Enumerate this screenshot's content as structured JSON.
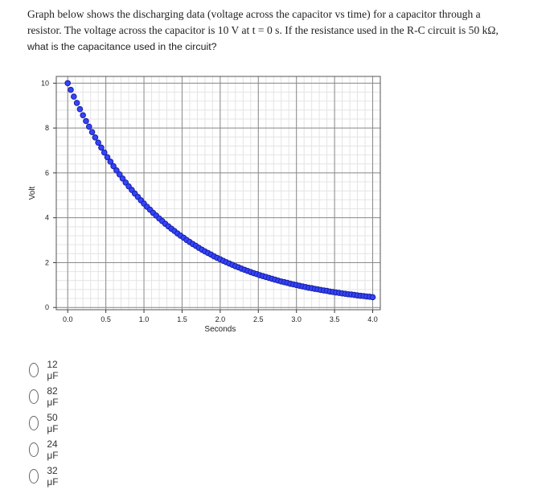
{
  "question": {
    "line1": "Graph below shows the discharging data (voltage across the capacitor vs time) for a capacitor through a",
    "line2": "resistor. The voltage across the capacitor is 10 V at t = 0 s. If the resistance used in the R-C circuit is 50 kΩ,",
    "line3": "what is the capacitance used in the circuit?"
  },
  "chart_data": {
    "type": "scatter",
    "title": "",
    "xlabel": "Seconds",
    "ylabel": "Volt",
    "xlim": [
      -0.15,
      4.1
    ],
    "ylim": [
      -0.1,
      10.3
    ],
    "x_ticks": [
      "0.0",
      "0.5",
      "1.0",
      "1.5",
      "2.0",
      "2.5",
      "3.0",
      "3.5",
      "4.0"
    ],
    "y_ticks": [
      "0",
      "2",
      "4",
      "6",
      "8",
      "10"
    ],
    "grid": true,
    "series": [
      {
        "marker_color": "#3344ff",
        "edge_color": "#1a1f9e",
        "x": [
          0.0,
          0.04,
          0.08,
          0.12,
          0.16,
          0.2,
          0.24,
          0.28,
          0.32,
          0.36,
          0.4,
          0.44,
          0.48,
          0.52,
          0.56,
          0.6,
          0.64,
          0.68,
          0.72,
          0.76,
          0.8,
          0.84,
          0.88,
          0.92,
          0.96,
          1.0,
          1.04,
          1.08,
          1.12,
          1.16,
          1.2,
          1.24,
          1.28,
          1.32,
          1.36,
          1.4,
          1.44,
          1.48,
          1.52,
          1.56,
          1.6,
          1.64,
          1.68,
          1.72,
          1.76,
          1.8,
          1.84,
          1.88,
          1.92,
          1.96,
          2.0,
          2.04,
          2.08,
          2.12,
          2.16,
          2.2,
          2.24,
          2.28,
          2.32,
          2.36,
          2.4,
          2.44,
          2.48,
          2.52,
          2.56,
          2.6,
          2.64,
          2.68,
          2.72,
          2.76,
          2.8,
          2.84,
          2.88,
          2.92,
          2.96,
          3.0,
          3.04,
          3.08,
          3.12,
          3.16,
          3.2,
          3.24,
          3.28,
          3.32,
          3.36,
          3.4,
          3.44,
          3.48,
          3.52,
          3.56,
          3.6,
          3.64,
          3.68,
          3.72,
          3.76,
          3.8,
          3.84,
          3.88,
          3.92,
          3.96,
          4.0
        ],
        "y": [
          10.0,
          9.7,
          9.4,
          9.12,
          8.84,
          8.57,
          8.31,
          8.06,
          7.82,
          7.58,
          7.35,
          7.13,
          6.91,
          6.7,
          6.5,
          6.3,
          6.11,
          5.93,
          5.75,
          5.57,
          5.4,
          5.24,
          5.08,
          4.93,
          4.78,
          4.63,
          4.49,
          4.36,
          4.22,
          4.1,
          3.97,
          3.85,
          3.73,
          3.62,
          3.51,
          3.41,
          3.3,
          3.2,
          3.11,
          3.01,
          2.92,
          2.83,
          2.75,
          2.66,
          2.58,
          2.5,
          2.43,
          2.36,
          2.28,
          2.21,
          2.15,
          2.08,
          2.02,
          1.96,
          1.9,
          1.84,
          1.79,
          1.73,
          1.68,
          1.63,
          1.58,
          1.53,
          1.49,
          1.44,
          1.4,
          1.36,
          1.32,
          1.28,
          1.24,
          1.2,
          1.16,
          1.13,
          1.1,
          1.06,
          1.03,
          1.0,
          0.97,
          0.94,
          0.91,
          0.88,
          0.86,
          0.83,
          0.81,
          0.78,
          0.76,
          0.74,
          0.71,
          0.69,
          0.67,
          0.65,
          0.63,
          0.61,
          0.59,
          0.58,
          0.56,
          0.54,
          0.52,
          0.51,
          0.49,
          0.48,
          0.46
        ]
      }
    ]
  },
  "options": [
    {
      "label": "12 μF"
    },
    {
      "label": "82 μF"
    },
    {
      "label": "50 μF"
    },
    {
      "label": "24 μF"
    },
    {
      "label": "32 μF"
    }
  ]
}
